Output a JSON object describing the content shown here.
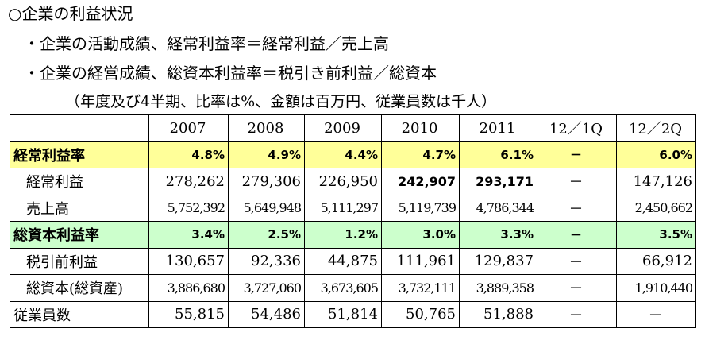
{
  "heading": "○企業の利益状況",
  "bullets": [
    "・企業の活動成績、経常利益率＝経常利益／売上高",
    "・企業の経営成績、総資本利益率＝税引き前利益／総資本"
  ],
  "note": "（年度及び4半期、比率は%、金額は百万円、従業員数は千人）",
  "table": {
    "columns": [
      "",
      "2007",
      "2008",
      "2009",
      "2010",
      "2011",
      "12／1Q",
      "12／2Q"
    ],
    "rows": [
      {
        "label": "経常利益率",
        "cells": [
          "4.8%",
          "4.9%",
          "4.4%",
          "4.7%",
          "6.1%",
          "－",
          "6.0%"
        ]
      },
      {
        "label": "経常利益",
        "cells": [
          "278,262",
          "279,306",
          "226,950",
          "242,907",
          "293,171",
          "－",
          "147,126"
        ]
      },
      {
        "label": "売上高",
        "cells": [
          "5,752,392",
          "5,649,948",
          "5,111,297",
          "5,119,739",
          "4,786,344",
          "－",
          "2,450,662"
        ]
      },
      {
        "label": "総資本利益率",
        "cells": [
          "3.4%",
          "2.5%",
          "1.2%",
          "3.0%",
          "3.3%",
          "－",
          "3.5%"
        ]
      },
      {
        "label": "税引前利益",
        "cells": [
          "130,657",
          "92,336",
          "44,875",
          "111,961",
          "129,837",
          "－",
          "66,912"
        ]
      },
      {
        "label": "総資本(総資産)",
        "cells": [
          "3,886,680",
          "3,727,060",
          "3,673,605",
          "3,732,111",
          "3,889,358",
          "－",
          "1,910,440"
        ]
      },
      {
        "label": "従業員数",
        "cells": [
          "55,815",
          "54,486",
          "51,814",
          "50,765",
          "51,888",
          "－",
          "－"
        ]
      }
    ]
  },
  "colors": {
    "yellow_row": "#ffff99",
    "green_row": "#ccffcc"
  }
}
